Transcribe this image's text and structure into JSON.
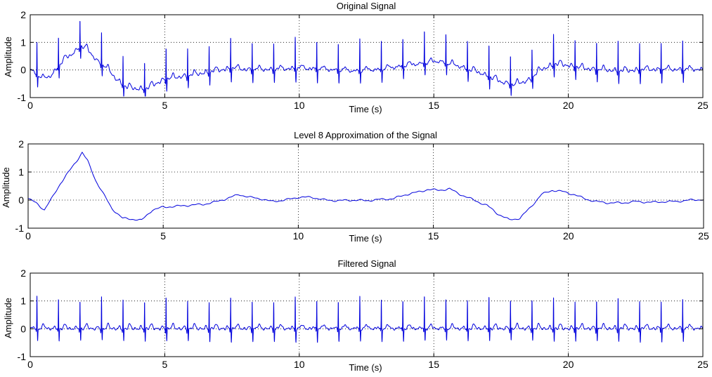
{
  "chart_data": [
    {
      "type": "line",
      "title": "Original Signal",
      "xlabel": "Time  (s)",
      "ylabel": "Amplitude",
      "xlim": [
        0,
        25
      ],
      "ylim": [
        -1,
        2
      ],
      "xticks": [
        "0",
        "5",
        "10",
        "15",
        "20",
        "25"
      ],
      "yticks": [
        "-1",
        "0",
        "1",
        "2"
      ],
      "grid": true,
      "series": [
        {
          "name": "Original Signal",
          "color": "#0000dd",
          "beat_period_s": 0.8,
          "baseline": {
            "x": [
              0,
              0.5,
              0.8,
              1.2,
              1.6,
              1.9,
              2.1,
              2.5,
              2.8,
              3.2,
              3.6,
              4.0,
              4.3,
              5.0,
              6.0,
              7.5,
              8.0,
              9.0,
              10.0,
              11.0,
              12.0,
              13.0,
              14.0,
              14.8,
              15.2,
              16.0,
              16.8,
              17.5,
              18.0,
              18.5,
              19.0,
              19.5,
              20.0,
              20.5,
              21.0,
              22.0,
              23.0,
              24.0,
              25.0
            ],
            "y": [
              0,
              -0.35,
              -0.2,
              0.3,
              0.6,
              0.85,
              0.75,
              0.3,
              0.1,
              -0.35,
              -0.65,
              -0.7,
              -0.7,
              -0.35,
              -0.2,
              0.05,
              0.0,
              0.0,
              0.05,
              0.0,
              -0.05,
              0.0,
              0.15,
              0.25,
              0.3,
              0.1,
              -0.15,
              -0.45,
              -0.55,
              -0.4,
              0.0,
              0.2,
              0.15,
              0.05,
              0.0,
              -0.05,
              0.0,
              0.0,
              0.0
            ]
          },
          "r_peak_amplitude": 1.1,
          "s_wave_amplitude": -0.45
        }
      ]
    },
    {
      "type": "line",
      "title": "Level 8 Approximation of the Signal",
      "xlabel": "Time  (s)",
      "ylabel": "Amplitude",
      "xlim": [
        0,
        25
      ],
      "ylim": [
        -1,
        2
      ],
      "xticks": [
        "0",
        "5",
        "10",
        "15",
        "20",
        "25"
      ],
      "yticks": [
        "-1",
        "0",
        "1",
        "2"
      ],
      "grid": true,
      "series": [
        {
          "name": "Level 8 Approximation",
          "color": "#0000dd",
          "x": [
            0,
            0.3,
            0.6,
            0.9,
            1.2,
            1.5,
            1.8,
            2.0,
            2.2,
            2.5,
            2.8,
            3.1,
            3.5,
            3.9,
            4.2,
            4.6,
            5.0,
            5.5,
            6.0,
            6.5,
            7.0,
            7.5,
            7.8,
            8.2,
            8.6,
            9.0,
            9.5,
            10.0,
            10.5,
            11.0,
            11.5,
            12.0,
            12.5,
            13.0,
            13.5,
            14.0,
            14.5,
            14.8,
            15.2,
            15.6,
            16.0,
            16.5,
            17.0,
            17.4,
            17.8,
            18.2,
            18.6,
            19.0,
            19.4,
            19.8,
            20.2,
            20.6,
            21.0,
            21.5,
            22.0,
            22.5,
            23.0,
            23.5,
            24.0,
            24.5,
            25.0
          ],
          "y": [
            0.05,
            -0.1,
            -0.35,
            0.1,
            0.6,
            1.0,
            1.4,
            1.7,
            1.4,
            0.7,
            0.2,
            -0.3,
            -0.65,
            -0.68,
            -0.72,
            -0.35,
            -0.25,
            -0.22,
            -0.18,
            -0.15,
            -0.05,
            0.1,
            0.2,
            0.1,
            0.05,
            -0.05,
            0.0,
            0.1,
            0.1,
            0.0,
            -0.02,
            0.0,
            -0.02,
            0.02,
            0.05,
            0.2,
            0.3,
            0.38,
            0.35,
            0.4,
            0.2,
            0.0,
            -0.2,
            -0.5,
            -0.7,
            -0.65,
            -0.25,
            0.2,
            0.35,
            0.3,
            0.2,
            0.05,
            -0.05,
            -0.1,
            -0.1,
            -0.05,
            -0.08,
            -0.06,
            -0.05,
            0.0,
            0.02
          ]
        }
      ]
    },
    {
      "type": "line",
      "title": "Filtered Signal",
      "xlabel": "Time (s)",
      "ylabel": "Amplitude",
      "xlim": [
        0,
        25
      ],
      "ylim": [
        -1,
        2
      ],
      "xticks": [
        "0",
        "5",
        "10",
        "15",
        "20",
        "25"
      ],
      "yticks": [
        "-1",
        "0",
        "1",
        "2"
      ],
      "grid": true,
      "series": [
        {
          "name": "Filtered Signal",
          "color": "#0000dd",
          "beat_period_s": 0.8,
          "r_peak_amplitude": 1.1,
          "s_wave_amplitude": -0.45
        }
      ]
    }
  ]
}
